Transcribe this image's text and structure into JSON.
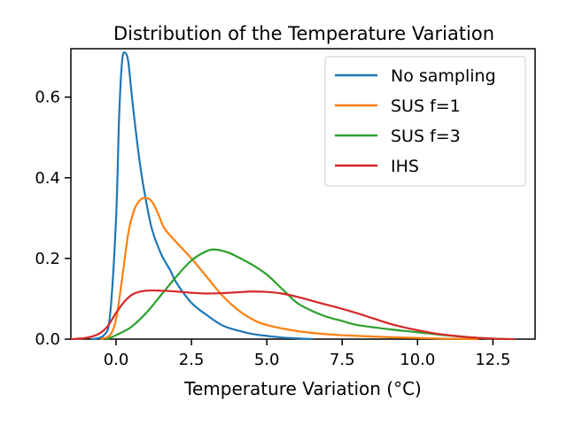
{
  "chart_data": {
    "type": "line",
    "title": "Distribution of the Temperature Variation",
    "xlabel": "Temperature Variation (°C)",
    "ylabel": "",
    "xlim": [
      -1.5,
      13.9
    ],
    "ylim": [
      0,
      0.72
    ],
    "xticks": [
      0.0,
      2.5,
      5.0,
      7.5,
      10.0,
      12.5
    ],
    "xtick_labels": [
      "0.0",
      "2.5",
      "5.0",
      "7.5",
      "10.0",
      "12.5"
    ],
    "yticks": [
      0.0,
      0.2,
      0.4,
      0.6
    ],
    "ytick_labels": [
      "0.0",
      "0.2",
      "0.4",
      "0.6"
    ],
    "grid": false,
    "legend_position": "top-right",
    "series": [
      {
        "name": "No sampling",
        "color": "#1f77b4",
        "x": [
          -0.8,
          -0.4,
          -0.2,
          0.0,
          0.1,
          0.2,
          0.3,
          0.4,
          0.5,
          0.6,
          0.8,
          1.0,
          1.2,
          1.5,
          1.8,
          2.0,
          2.5,
          3.0,
          3.5,
          4.0,
          4.5,
          5.0,
          5.5,
          6.0,
          6.5
        ],
        "y": [
          0.0,
          0.01,
          0.06,
          0.3,
          0.55,
          0.69,
          0.71,
          0.69,
          0.62,
          0.55,
          0.43,
          0.34,
          0.27,
          0.21,
          0.17,
          0.14,
          0.09,
          0.06,
          0.035,
          0.022,
          0.013,
          0.008,
          0.004,
          0.002,
          0.0
        ]
      },
      {
        "name": "SUS f=1",
        "color": "#ff7f0e",
        "x": [
          -0.5,
          -0.2,
          0.0,
          0.2,
          0.4,
          0.6,
          0.8,
          1.0,
          1.2,
          1.4,
          1.6,
          2.0,
          2.5,
          3.0,
          3.5,
          4.0,
          4.5,
          5.0,
          6.0,
          7.0,
          8.0,
          9.0,
          10.0,
          11.0,
          12.0
        ],
        "y": [
          0.0,
          0.01,
          0.05,
          0.15,
          0.26,
          0.32,
          0.345,
          0.35,
          0.34,
          0.31,
          0.275,
          0.24,
          0.2,
          0.155,
          0.11,
          0.075,
          0.05,
          0.035,
          0.02,
          0.012,
          0.008,
          0.005,
          0.003,
          0.001,
          0.0
        ]
      },
      {
        "name": "SUS f=3",
        "color": "#2ca02c",
        "x": [
          -0.3,
          0.0,
          0.5,
          1.0,
          1.5,
          2.0,
          2.5,
          3.0,
          3.3,
          3.7,
          4.0,
          4.5,
          5.0,
          5.5,
          6.0,
          6.5,
          7.0,
          7.5,
          8.0,
          9.0,
          10.0,
          11.0,
          12.0,
          13.0
        ],
        "y": [
          0.0,
          0.01,
          0.03,
          0.065,
          0.11,
          0.155,
          0.195,
          0.218,
          0.222,
          0.215,
          0.205,
          0.185,
          0.16,
          0.125,
          0.09,
          0.07,
          0.055,
          0.045,
          0.035,
          0.025,
          0.017,
          0.009,
          0.003,
          0.0
        ]
      },
      {
        "name": "IHS",
        "color": "#d62728",
        "x": [
          -1.5,
          -1.0,
          -0.6,
          -0.3,
          0.0,
          0.3,
          0.6,
          1.0,
          1.5,
          2.0,
          2.5,
          3.0,
          3.5,
          4.0,
          4.5,
          5.0,
          5.5,
          6.0,
          6.5,
          7.0,
          7.5,
          8.0,
          8.5,
          9.0,
          9.5,
          10.0,
          10.5,
          11.0,
          11.5,
          12.0,
          12.5,
          13.2
        ],
        "y": [
          0.0,
          0.003,
          0.012,
          0.03,
          0.065,
          0.095,
          0.113,
          0.12,
          0.12,
          0.118,
          0.115,
          0.113,
          0.114,
          0.116,
          0.118,
          0.117,
          0.113,
          0.105,
          0.095,
          0.085,
          0.075,
          0.064,
          0.052,
          0.04,
          0.03,
          0.022,
          0.015,
          0.01,
          0.006,
          0.003,
          0.001,
          0.0
        ]
      }
    ]
  }
}
